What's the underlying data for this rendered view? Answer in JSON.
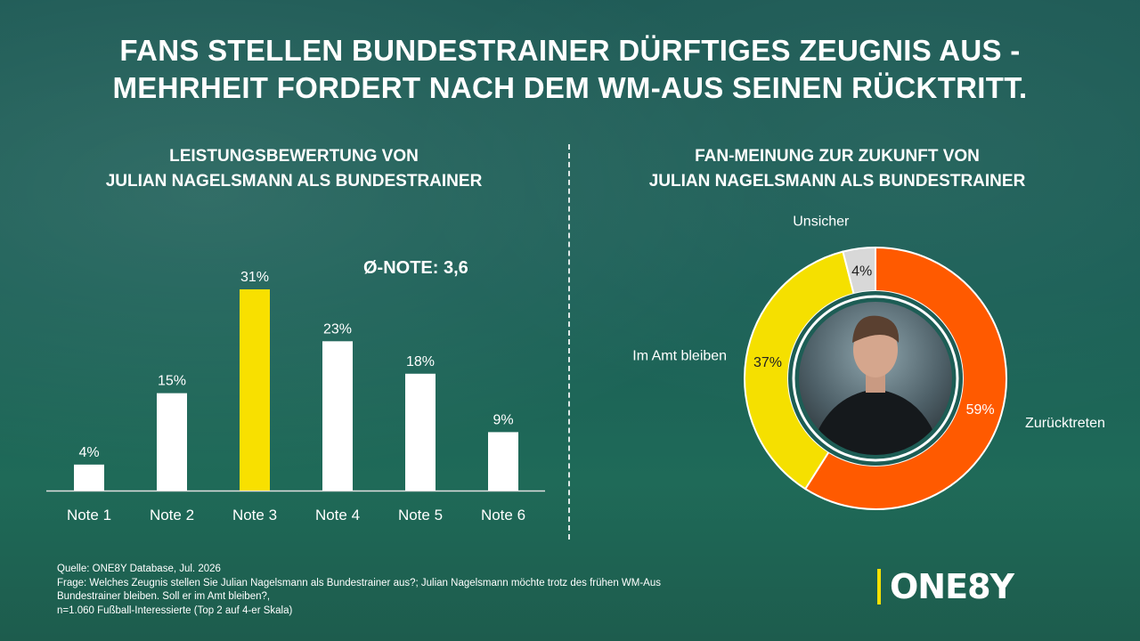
{
  "headline": {
    "line1": "FANS STELLEN BUNDESTRAINER DÜRFTIGES ZEUGNIS AUS -",
    "line2": "MEHRHEIT FORDERT NACH DEM WM-AUS SEINEN RÜCKTRITT."
  },
  "colors": {
    "bar_default": "#ffffff",
    "bar_highlight": "#f8e000",
    "donut_yes": "#f5e000",
    "donut_no": "#ff5a00",
    "donut_unsure": "#d8d8d8",
    "donut_ring": "#1d5d55",
    "logo_accent": "#f5e000"
  },
  "chart_data": [
    {
      "type": "bar",
      "title_line1": "LEISTUNGSBEWERTUNG VON",
      "title_line2": "JULIAN NAGELSMANN ALS BUNDESTRAINER",
      "annotation": "Ø-NOTE: 3,6",
      "categories": [
        "Note 1",
        "Note 2",
        "Note 3",
        "Note 4",
        "Note 5",
        "Note 6"
      ],
      "values": [
        4,
        15,
        31,
        23,
        18,
        9
      ],
      "labels": [
        "4%",
        "15%",
        "31%",
        "23%",
        "18%",
        "9%"
      ],
      "highlight_index": 2,
      "ylim": [
        0,
        31
      ]
    },
    {
      "type": "pie",
      "style": "donut",
      "title_line1": "FAN-MEINUNG ZUR ZUKUNFT VON",
      "title_line2": "JULIAN NAGELSMANN ALS BUNDESTRAINER",
      "slices": [
        {
          "name": "Zurücktreten",
          "value": 59,
          "label": "59%"
        },
        {
          "name": "Im Amt bleiben",
          "value": 37,
          "label": "37%"
        },
        {
          "name": "Unsicher",
          "value": 4,
          "label": "4%"
        }
      ]
    }
  ],
  "source": {
    "line1": "Quelle: ONE8Y Database, Jul. 2026",
    "line2": "Frage: Welches Zeugnis stellen Sie Julian Nagelsmann als Bundestrainer aus?; Julian Nagelsmann möchte trotz des frühen WM-Aus",
    "line3": "Bundestrainer bleiben. Soll er im Amt bleiben?,",
    "line4": "n=1.060 Fußball-Interessierte (Top 2 auf 4-er Skala)"
  },
  "logo": {
    "text": "ONE8Y"
  }
}
